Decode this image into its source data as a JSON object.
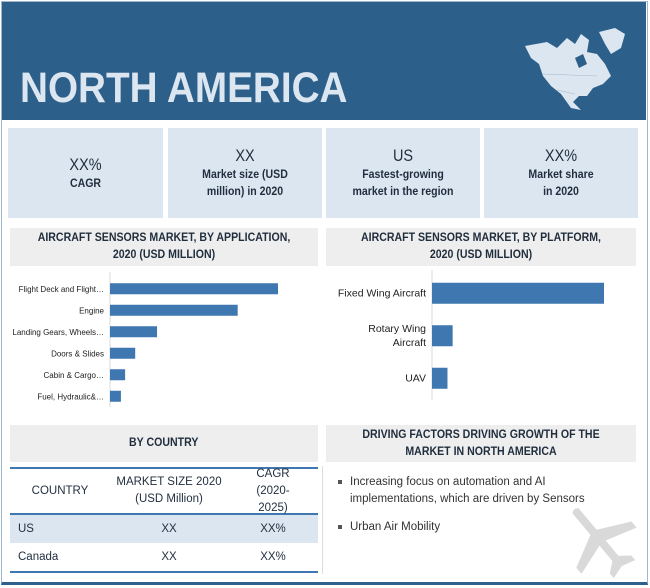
{
  "header": {
    "title": "NORTH AMERICA",
    "map_icon": "north-america-map"
  },
  "stats": [
    {
      "value": "XX%",
      "label": "CAGR"
    },
    {
      "value": "XX",
      "label": "Market size (USD million) in 2020"
    },
    {
      "value": "US",
      "label": "Fastest-growing market in the region"
    },
    {
      "value": "XX%",
      "label": "Market share in 2020"
    }
  ],
  "colors": {
    "header": "#2c5f8a",
    "bar": "#3f77b0",
    "stat_bg": "#dce6f1"
  },
  "chart_data": [
    {
      "type": "bar",
      "orientation": "horizontal",
      "title": "AIRCRAFT SENSORS MARKET, BY APPLICATION,  2020 (USD MILLION)",
      "categories": [
        "Flight Deck and Flight…",
        "Engine",
        "Landing Gears, Wheels…",
        "Doors & Slides",
        "Cabin & Cargo…",
        "Fuel, Hydraulic&…"
      ],
      "values": [
        100,
        76,
        28,
        15,
        9,
        6.5
      ],
      "xlim": [
        0,
        100
      ],
      "grid": false
    },
    {
      "type": "bar",
      "orientation": "horizontal",
      "title": "AIRCRAFT SENSORS MARKET, BY PLATFORM,  2020 (USD MILLION)",
      "categories": [
        "Fixed Wing Aircraft",
        "Rotary Wing Aircraft",
        "UAV"
      ],
      "values": [
        100,
        12,
        9
      ],
      "xlim": [
        0,
        100
      ],
      "grid": false
    }
  ],
  "country": {
    "title": "BY COUNTRY",
    "headers": [
      "COUNTRY",
      "MARKET SIZE 2020 (USD Million)",
      "CAGR (2020-2025)"
    ],
    "rows": [
      [
        "US",
        "XX",
        "XX%"
      ],
      [
        "Canada",
        "XX",
        "XX%"
      ]
    ]
  },
  "drivers": {
    "title": "DRIVING FACTORS DRIVING GROWTH OF THE MARKET IN NORTH AMERICA",
    "items": [
      "Increasing focus on automation and AI implementations, which are driven by Sensors",
      "Urban Air Mobility"
    ]
  }
}
